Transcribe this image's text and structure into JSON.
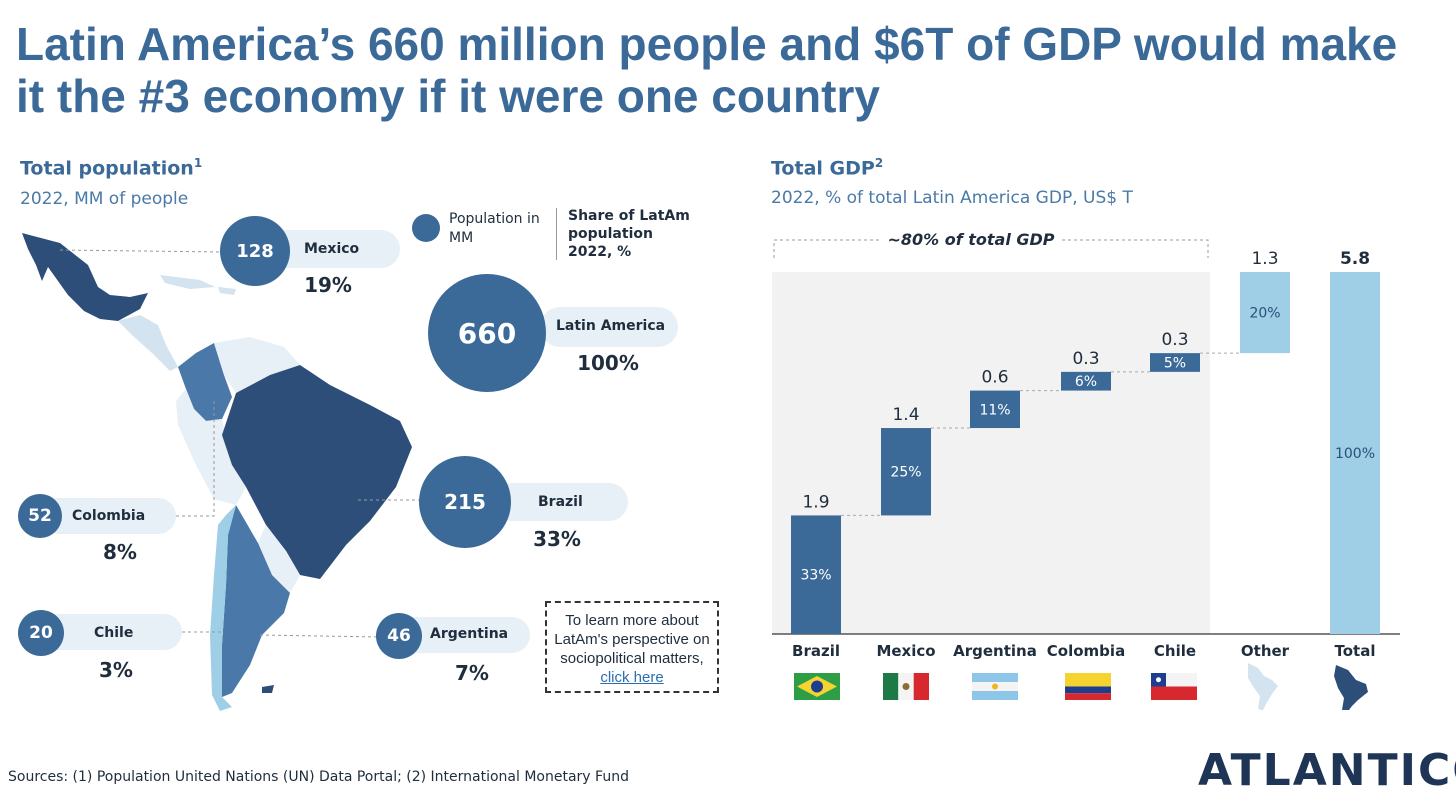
{
  "title": "Latin America’s 660 million people and $6T of GDP would make it the #3 economy if it were one country",
  "population": {
    "title": "Total population",
    "footnote": "1",
    "subtitle": "2022, MM of people",
    "legend_population": "Population in MM",
    "legend_share": "Share of LatAm population 2022, %",
    "countries": [
      {
        "name": "Mexico",
        "value": "128",
        "share": "19%"
      },
      {
        "name": "Latin America",
        "value": "660",
        "share": "100%"
      },
      {
        "name": "Brazil",
        "value": "215",
        "share": "33%"
      },
      {
        "name": "Colombia",
        "value": "52",
        "share": "8%"
      },
      {
        "name": "Chile",
        "value": "20",
        "share": "3%"
      },
      {
        "name": "Argentina",
        "value": "46",
        "share": "7%"
      }
    ],
    "colors": {
      "dark": "#2e4e7a",
      "mid": "#3b6a99",
      "light": "#d3e3ef",
      "pale": "#e6f0f6"
    }
  },
  "note": {
    "text": "To learn more about LatAm's perspective on sociopolitical matters,",
    "link": "click here"
  },
  "chart_data": {
    "type": "bar",
    "subtype": "waterfall",
    "title": "Total GDP",
    "footnote": "2",
    "subtitle": "2022, % of total Latin America GDP, US$ T",
    "bracket_label": "~80% of total GDP",
    "categories": [
      "Brazil",
      "Mexico",
      "Argentina",
      "Colombia",
      "Chile",
      "Other",
      "Total"
    ],
    "values": [
      1.9,
      1.4,
      0.6,
      0.3,
      0.3,
      1.3,
      5.8
    ],
    "value_labels": [
      "1.9",
      "1.4",
      "0.6",
      "0.3",
      "0.3",
      "1.3",
      "5.8"
    ],
    "shares": [
      "33%",
      "25%",
      "11%",
      "6%",
      "5%",
      "20%",
      "100%"
    ],
    "ylim": [
      0,
      5.8
    ],
    "colors": {
      "main": "#3b6a99",
      "other": "#9ecfe6",
      "total": "#9ecfe6",
      "shade": "#f2f2f2"
    }
  },
  "sources": "Sources: (1) Population United Nations (UN) Data Portal; (2) International Monetary Fund",
  "logo": "ATLANTICO"
}
